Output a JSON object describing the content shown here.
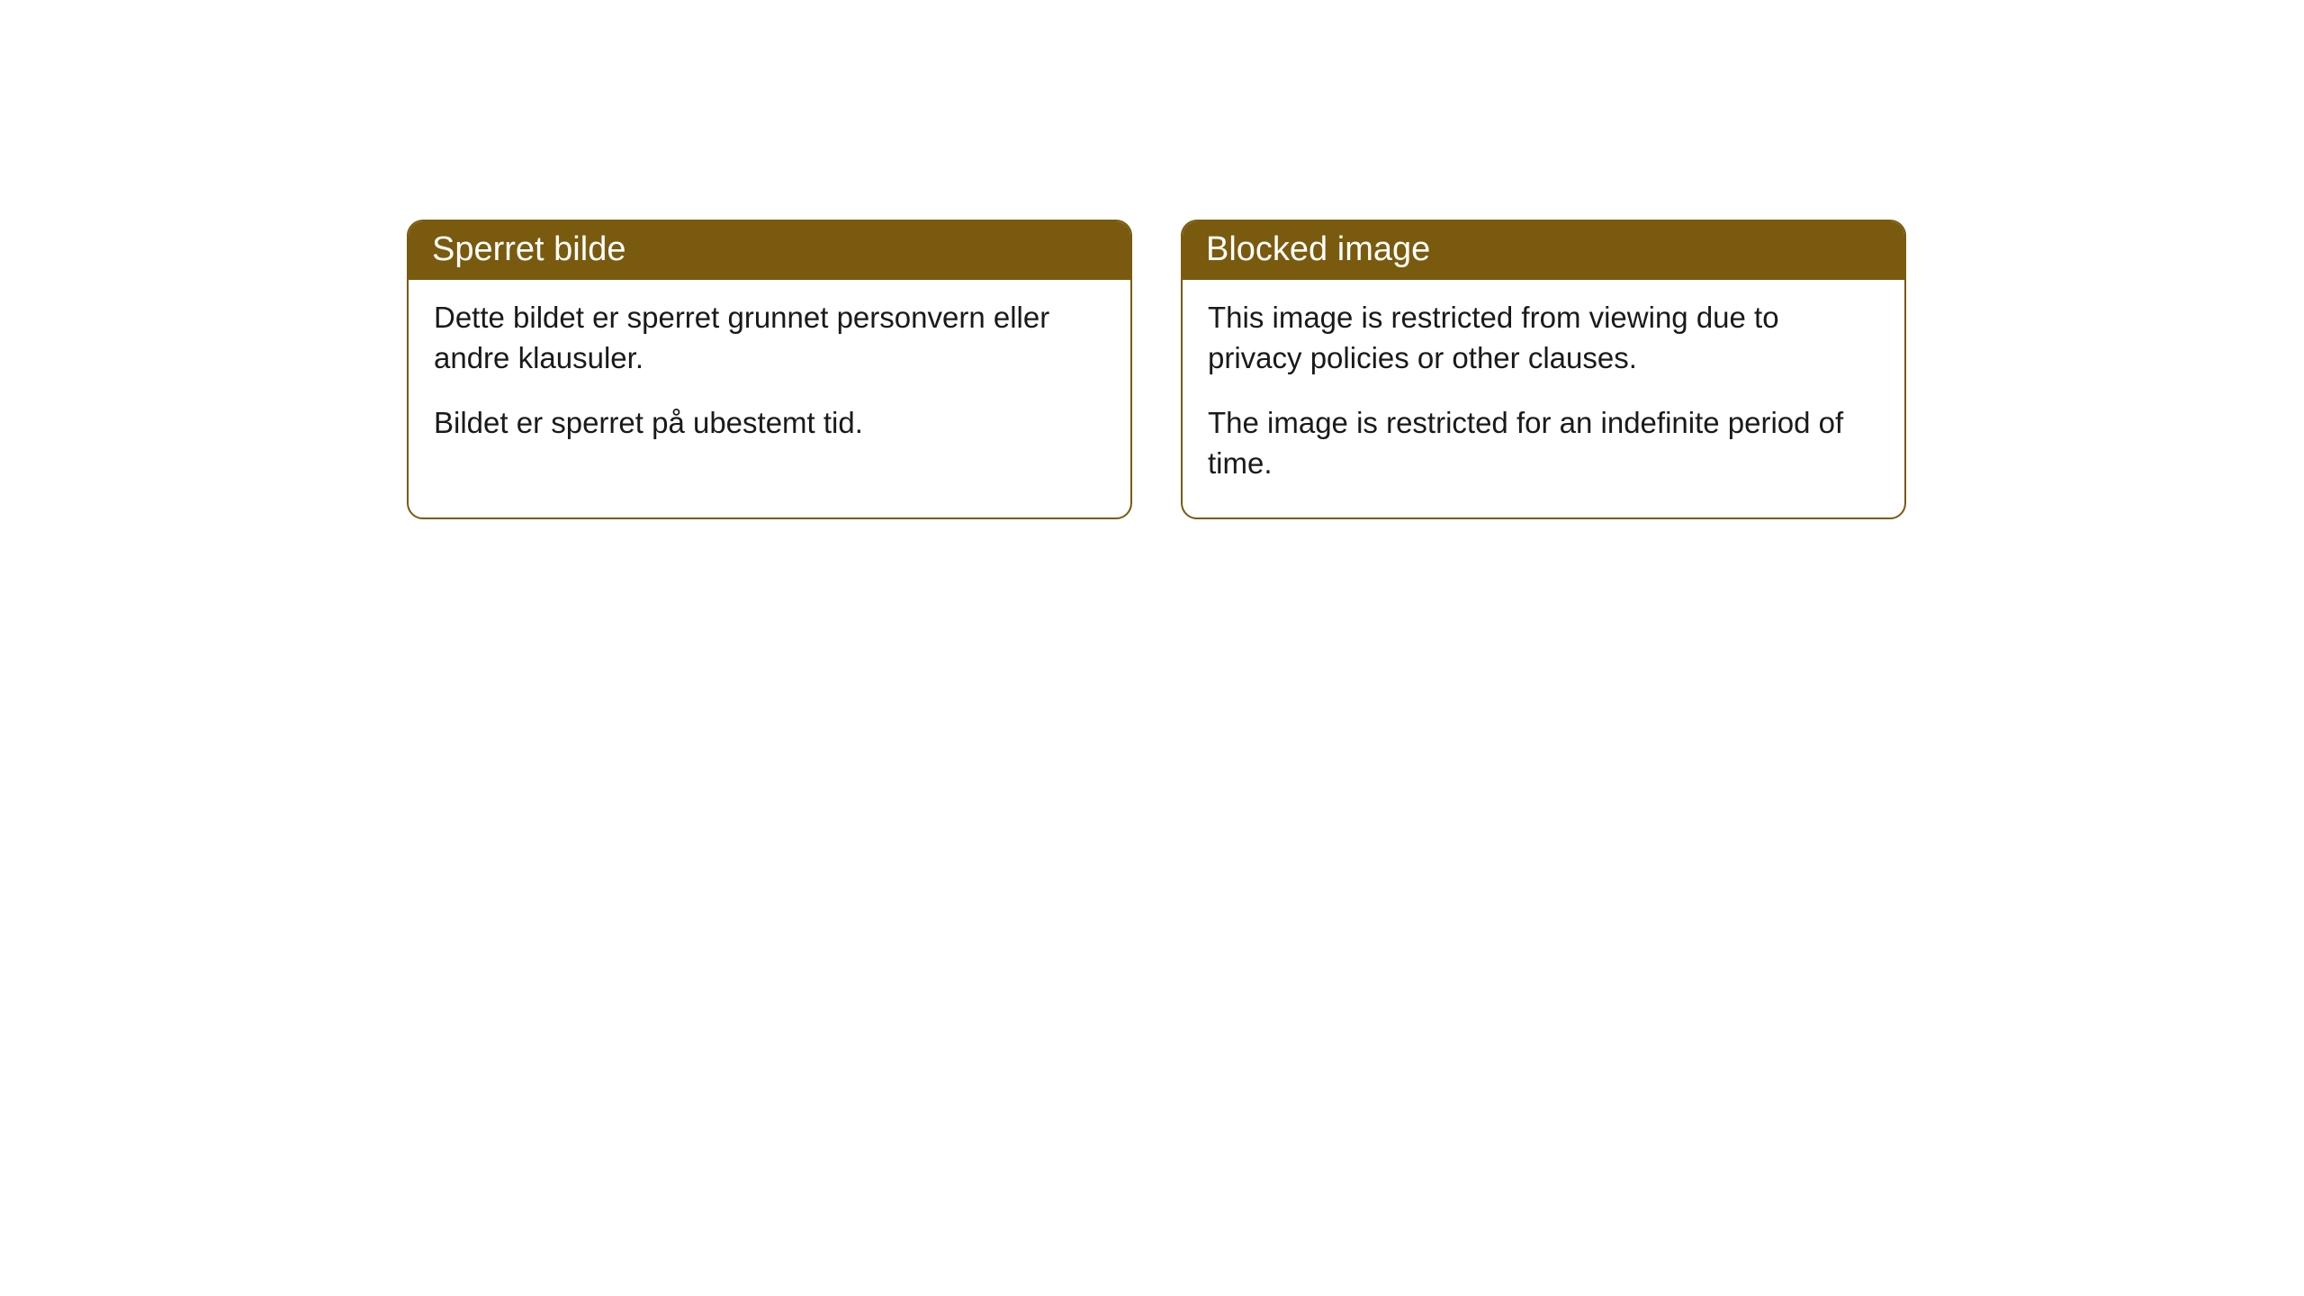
{
  "cards": [
    {
      "title": "Sperret bilde",
      "para1": "Dette bildet er sperret grunnet personvern eller andre klausuler.",
      "para2": "Bildet er sperret på ubestemt tid."
    },
    {
      "title": "Blocked image",
      "para1": "This image is restricted from viewing due to privacy policies or other clauses.",
      "para2": "The image is restricted for an indefinite period of time."
    }
  ],
  "style": {
    "header_bg": "#7a5a0e",
    "header_text_color": "#ffffff",
    "border_color": "#7a5a0e",
    "body_bg": "#ffffff",
    "body_text_color": "#1a1a1a",
    "border_radius": 18,
    "header_fontsize": 38,
    "body_fontsize": 33
  }
}
